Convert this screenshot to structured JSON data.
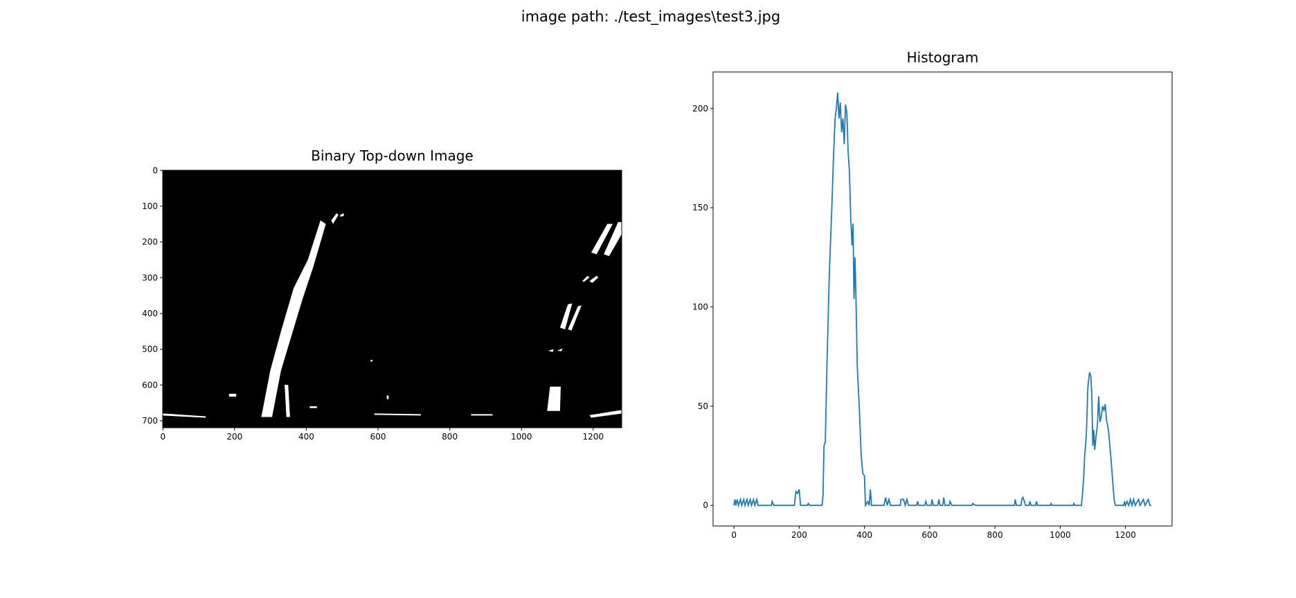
{
  "title": "image path: ./test_images\\test3.jpg",
  "chart_data": [
    {
      "type": "image",
      "title": "Binary Top-down Image",
      "xlim": [
        -0.5,
        1279.5
      ],
      "ylim": [
        719.5,
        -0.5
      ],
      "xticks": [
        0,
        200,
        400,
        600,
        800,
        1000,
        1200
      ],
      "yticks": [
        0,
        100,
        200,
        300,
        400,
        500,
        600,
        700
      ]
    },
    {
      "type": "line",
      "title": "Histogram",
      "x": [
        0,
        3,
        6,
        10,
        14,
        20,
        24,
        30,
        34,
        40,
        44,
        50,
        54,
        60,
        64,
        70,
        74,
        80,
        115,
        117,
        122,
        185,
        190,
        195,
        200,
        204,
        225,
        228,
        232,
        270,
        273,
        276,
        280,
        285,
        292,
        300,
        305,
        310,
        314,
        318,
        322,
        326,
        330,
        334,
        338,
        342,
        346,
        350,
        354,
        358,
        362,
        365,
        368,
        371,
        374,
        378,
        384,
        390,
        395,
        400,
        403,
        410,
        415,
        418,
        422,
        460,
        465,
        470,
        475,
        480,
        510,
        512,
        520,
        525,
        530,
        535,
        560,
        563,
        566,
        585,
        588,
        592,
        605,
        607,
        611,
        625,
        628,
        632,
        640,
        643,
        647,
        660,
        662,
        668,
        730,
        732,
        740,
        860,
        862,
        866,
        880,
        882,
        886,
        890,
        894,
        905,
        907,
        911,
        925,
        927,
        931,
        970,
        972,
        975,
        1040,
        1042,
        1045,
        1065,
        1068,
        1072,
        1075,
        1080,
        1085,
        1090,
        1094,
        1097,
        1100,
        1103,
        1106,
        1110,
        1114,
        1118,
        1122,
        1126,
        1130,
        1134,
        1138,
        1142,
        1148,
        1155,
        1162,
        1166,
        1170,
        1195,
        1197,
        1200,
        1205,
        1210,
        1215,
        1220,
        1225,
        1230,
        1240,
        1245,
        1255,
        1260,
        1270,
        1275,
        1279
      ],
      "series": [
        {
          "color": "#1f77b4",
          "values": [
            0,
            3,
            0,
            3,
            0,
            3,
            0,
            3,
            0,
            3,
            0,
            3,
            0,
            3,
            0,
            3,
            0,
            0,
            0,
            2,
            0,
            0,
            7,
            6,
            8,
            0,
            0,
            1,
            0,
            0,
            5,
            30,
            32,
            70,
            115,
            150,
            175,
            195,
            200,
            208,
            195,
            203,
            188,
            195,
            182,
            202,
            198,
            178,
            168,
            145,
            131,
            142,
            104,
            125,
            105,
            70,
            50,
            25,
            16,
            15,
            0,
            2,
            0,
            8,
            0,
            0,
            4,
            0,
            3,
            0,
            0,
            3,
            3,
            0,
            3,
            0,
            0,
            2,
            0,
            0,
            2,
            0,
            0,
            3,
            0,
            0,
            3,
            0,
            0,
            4,
            0,
            0,
            2,
            0,
            0,
            1,
            0,
            0,
            3,
            0,
            0,
            3,
            4,
            2,
            0,
            0,
            2,
            0,
            0,
            2,
            0,
            0,
            1,
            0,
            0,
            1,
            0,
            0,
            5,
            14,
            25,
            35,
            60,
            67,
            65,
            55,
            30,
            38,
            28,
            35,
            40,
            55,
            42,
            45,
            50,
            48,
            51,
            43,
            38,
            25,
            10,
            2,
            0,
            0,
            2,
            0,
            2,
            0,
            3,
            0,
            3,
            0,
            3,
            0,
            3,
            0,
            3,
            0,
            0
          ]
        }
      ],
      "xlim": [
        -64,
        1343
      ],
      "ylim": [
        -10.4,
        218.4
      ],
      "xticks": [
        0,
        200,
        400,
        600,
        800,
        1000,
        1200
      ],
      "yticks": [
        0,
        50,
        100,
        150,
        200
      ]
    }
  ]
}
